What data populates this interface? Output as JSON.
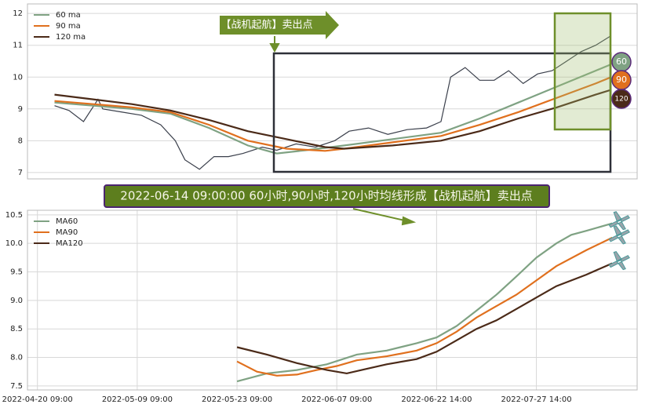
{
  "chart_data": [
    {
      "type": "line",
      "annotation": "【战机起航】卖出点",
      "grid": true,
      "legend": "upper left",
      "xlim": [
        -28,
        603
      ],
      "ylim": [
        6.8,
        12.3
      ],
      "yticks": [
        7,
        8,
        9,
        10,
        11,
        12
      ],
      "price": {
        "color": "#3a3f4b",
        "x": [
          0,
          15,
          30,
          45,
          50,
          70,
          90,
          110,
          125,
          135,
          150,
          165,
          180,
          195,
          215,
          230,
          250,
          270,
          290,
          305,
          325,
          345,
          365,
          385,
          400,
          410,
          425,
          440,
          455,
          470,
          485,
          500,
          515,
          530,
          545,
          560,
          576
        ],
        "values": [
          9.1,
          8.95,
          8.6,
          9.3,
          9.0,
          8.9,
          8.8,
          8.5,
          8.0,
          7.4,
          7.1,
          7.5,
          7.5,
          7.6,
          7.8,
          7.7,
          7.9,
          7.8,
          8.0,
          8.3,
          8.4,
          8.2,
          8.35,
          8.4,
          8.6,
          10.0,
          10.3,
          9.9,
          9.9,
          10.2,
          9.8,
          10.1,
          10.2,
          10.5,
          10.8,
          11.0,
          11.3
        ]
      },
      "series": [
        {
          "name": "60 ma",
          "color": "#7fa283",
          "badge": 60,
          "x": [
            0,
            40,
            80,
            120,
            160,
            200,
            230,
            260,
            300,
            350,
            400,
            440,
            480,
            520,
            560,
            576
          ],
          "values": [
            9.2,
            9.1,
            9.0,
            8.85,
            8.4,
            7.85,
            7.6,
            7.7,
            7.85,
            8.05,
            8.25,
            8.7,
            9.2,
            9.7,
            10.2,
            10.4
          ]
        },
        {
          "name": "90 ma",
          "color": "#e0701e",
          "badge": 90,
          "x": [
            0,
            40,
            80,
            120,
            160,
            200,
            240,
            280,
            300,
            350,
            400,
            440,
            480,
            520,
            560,
            576
          ],
          "values": [
            9.25,
            9.15,
            9.05,
            8.9,
            8.5,
            8.0,
            7.75,
            7.68,
            7.75,
            7.95,
            8.15,
            8.5,
            8.9,
            9.35,
            9.8,
            10.0
          ]
        },
        {
          "name": "120 ma",
          "color": "#4b2a18",
          "badge": 120,
          "x": [
            0,
            40,
            80,
            120,
            160,
            200,
            240,
            280,
            300,
            350,
            400,
            440,
            480,
            520,
            560,
            576
          ],
          "values": [
            9.45,
            9.3,
            9.15,
            8.95,
            8.65,
            8.3,
            8.05,
            7.8,
            7.75,
            7.85,
            8.0,
            8.3,
            8.7,
            9.05,
            9.45,
            9.6
          ]
        }
      ]
    },
    {
      "type": "line",
      "title": "2022-06-14 09:00:00 60小时,90小时,120小时均线形成【战机起航】卖出点",
      "grid": true,
      "legend": "upper left",
      "xlim": [
        -10,
        601
      ],
      "ylim": [
        7.43,
        10.58
      ],
      "xticks": [
        {
          "value": 0,
          "label": "2022-04-20 09:00"
        },
        {
          "value": 100,
          "label": "2022-05-09 09:00"
        },
        {
          "value": 200,
          "label": "2022-05-23 09:00"
        },
        {
          "value": 300,
          "label": "2022-06-07 09:00"
        },
        {
          "value": 400,
          "label": "2022-06-22 14:00"
        },
        {
          "value": 500,
          "label": "2022-07-27 14:00"
        }
      ],
      "yticks": [
        7.5,
        {
          "value": 8,
          "label": "8.0"
        },
        8.5,
        {
          "value": 9,
          "label": "9.0"
        },
        9.5,
        {
          "value": 10,
          "label": "10.0"
        },
        10.5
      ],
      "series": [
        {
          "name": "MA60",
          "color": "#7fa283",
          "x": [
            200,
            230,
            260,
            290,
            320,
            350,
            380,
            400,
            420,
            440,
            460,
            480,
            500,
            520,
            535,
            550,
            576
          ],
          "values": [
            7.58,
            7.72,
            7.78,
            7.88,
            8.05,
            8.12,
            8.25,
            8.35,
            8.55,
            8.82,
            9.1,
            9.42,
            9.75,
            10.0,
            10.15,
            10.22,
            10.35
          ]
        },
        {
          "name": "MA90",
          "color": "#e0701e",
          "x": [
            200,
            220,
            240,
            260,
            280,
            300,
            320,
            350,
            380,
            400,
            420,
            440,
            460,
            480,
            500,
            520,
            550,
            576
          ],
          "values": [
            7.93,
            7.75,
            7.68,
            7.7,
            7.78,
            7.85,
            7.95,
            8.02,
            8.12,
            8.25,
            8.45,
            8.7,
            8.9,
            9.1,
            9.35,
            9.6,
            9.88,
            10.1
          ]
        },
        {
          "name": "MA120",
          "color": "#4b2a18",
          "x": [
            200,
            230,
            260,
            290,
            310,
            330,
            350,
            380,
            400,
            420,
            440,
            460,
            480,
            500,
            520,
            550,
            576
          ],
          "values": [
            8.18,
            8.05,
            7.9,
            7.78,
            7.72,
            7.8,
            7.88,
            7.97,
            8.1,
            8.3,
            8.5,
            8.65,
            8.85,
            9.05,
            9.25,
            9.45,
            9.65
          ]
        }
      ]
    }
  ]
}
